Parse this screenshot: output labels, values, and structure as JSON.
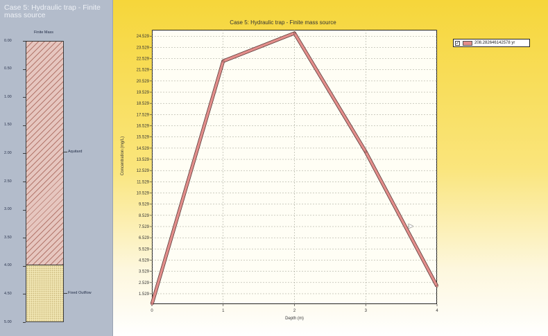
{
  "left_panel": {
    "title": "Case 5: Hydraulic trap - Finite mass source",
    "column_header": "Finite Mass",
    "depth_ticks": [
      "0.00",
      "0.50",
      "1.00",
      "1.50",
      "2.00",
      "2.50",
      "3.00",
      "3.50",
      "4.00",
      "4.50",
      "5.00"
    ],
    "layers": [
      {
        "name": "Aquitard",
        "top_depth": 0,
        "bottom_depth": 4
      },
      {
        "name": "Fixed Outflow",
        "top_depth": 4,
        "bottom_depth": 5
      }
    ],
    "colors": {
      "aquitard": "#e6c6bf",
      "outflow": "#f0e5b2",
      "panel": "#b3bccb"
    }
  },
  "legend": {
    "checked": "✓",
    "label": "208.282646142578 yr",
    "color": "#e38e8b"
  },
  "chart_data": {
    "type": "line",
    "title": "Case 5: Hydraulic trap - Finite mass source",
    "xlabel": "Depth (m)",
    "ylabel": "Concentration (mg/L)",
    "xlim": [
      0,
      4
    ],
    "ylim": [
      0.6,
      25.1
    ],
    "x_ticks": [
      "0",
      "1",
      "2",
      "3",
      "4"
    ],
    "y_ticks": [
      "1.529",
      "2.529",
      "3.529",
      "4.529",
      "5.529",
      "6.529",
      "7.529",
      "8.529",
      "9.529",
      "10.529",
      "11.529",
      "12.529",
      "13.529",
      "14.529",
      "15.529",
      "16.529",
      "17.529",
      "18.529",
      "19.529",
      "20.529",
      "21.529",
      "22.529",
      "23.529",
      "24.529"
    ],
    "grid": true,
    "legend_position": "top-right",
    "series": [
      {
        "name": "208.282646142578 yr",
        "x": [
          0,
          1,
          2,
          3,
          4
        ],
        "y": [
          0.6,
          22.3,
          24.8,
          14.2,
          2.2
        ],
        "color": "#e38e8b"
      }
    ]
  }
}
